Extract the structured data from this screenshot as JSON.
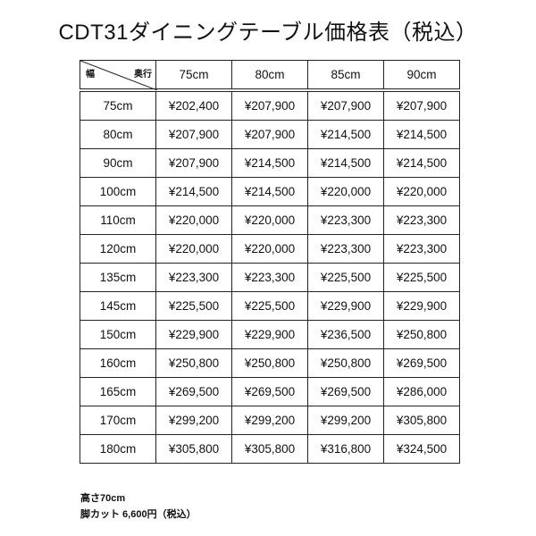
{
  "title": "CDT31ダイニングテーブル価格表（税込）",
  "table": {
    "corner_row_label": "幅",
    "corner_col_label": "奥行",
    "columns": [
      "75cm",
      "80cm",
      "85cm",
      "90cm"
    ],
    "rows": [
      {
        "label": "75cm",
        "values": [
          "¥202,400",
          "¥207,900",
          "¥207,900",
          "¥207,900"
        ]
      },
      {
        "label": "80cm",
        "values": [
          "¥207,900",
          "¥207,900",
          "¥214,500",
          "¥214,500"
        ]
      },
      {
        "label": "90cm",
        "values": [
          "¥207,900",
          "¥214,500",
          "¥214,500",
          "¥214,500"
        ]
      },
      {
        "label": "100cm",
        "values": [
          "¥214,500",
          "¥214,500",
          "¥220,000",
          "¥220,000"
        ]
      },
      {
        "label": "110cm",
        "values": [
          "¥220,000",
          "¥220,000",
          "¥223,300",
          "¥223,300"
        ]
      },
      {
        "label": "120cm",
        "values": [
          "¥220,000",
          "¥220,000",
          "¥223,300",
          "¥223,300"
        ]
      },
      {
        "label": "135cm",
        "values": [
          "¥223,300",
          "¥223,300",
          "¥225,500",
          "¥225,500"
        ]
      },
      {
        "label": "145cm",
        "values": [
          "¥225,500",
          "¥225,500",
          "¥229,900",
          "¥229,900"
        ]
      },
      {
        "label": "150cm",
        "values": [
          "¥229,900",
          "¥229,900",
          "¥236,500",
          "¥250,800"
        ]
      },
      {
        "label": "160cm",
        "values": [
          "¥250,800",
          "¥250,800",
          "¥250,800",
          "¥269,500"
        ]
      },
      {
        "label": "165cm",
        "values": [
          "¥269,500",
          "¥269,500",
          "¥269,500",
          "¥286,000"
        ]
      },
      {
        "label": "170cm",
        "values": [
          "¥299,200",
          "¥299,200",
          "¥299,200",
          "¥305,800"
        ]
      },
      {
        "label": "180cm",
        "values": [
          "¥305,800",
          "¥305,800",
          "¥316,800",
          "¥324,500"
        ]
      }
    ]
  },
  "notes": [
    "高さ70cm",
    "脚カット 6,600円（税込）"
  ]
}
